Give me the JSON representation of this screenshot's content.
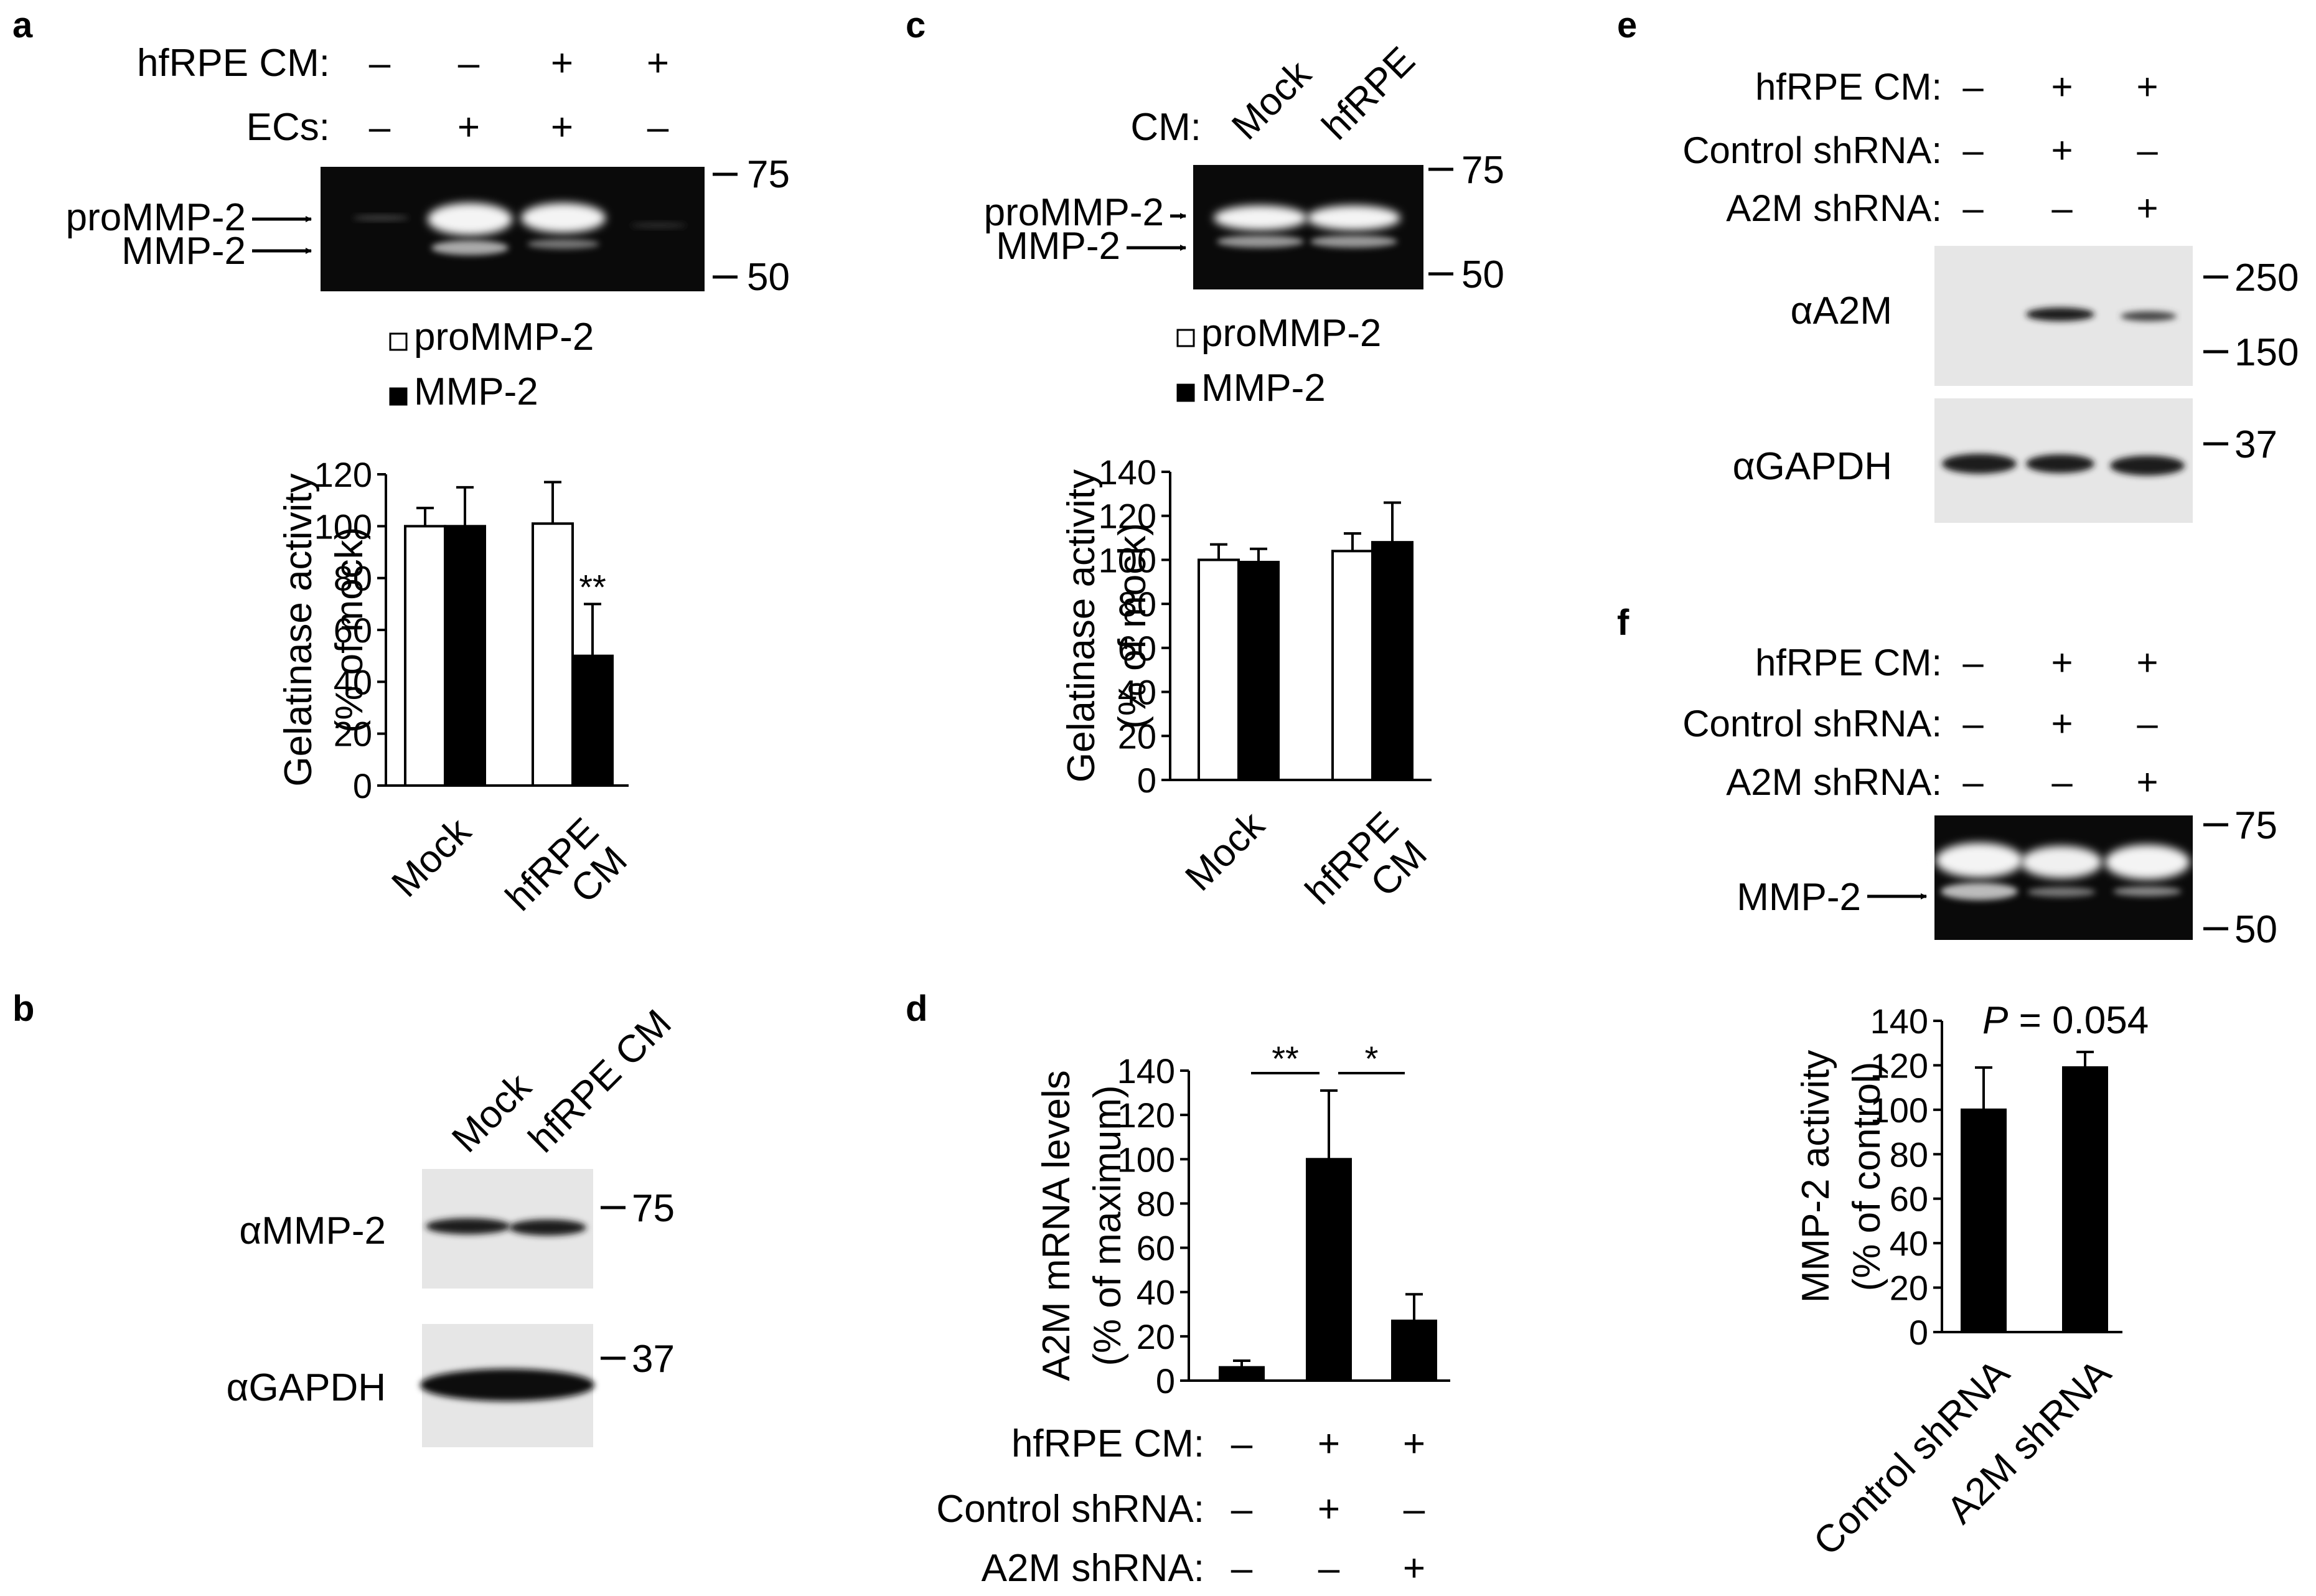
{
  "colors": {
    "bar_open": "#ffffff",
    "bar_solid": "#000000",
    "gel_background": "#0a0a0a",
    "band_bright": "#f4f4f4",
    "blot_background": "#e6e6e6",
    "blot_band": "#1a1a1a"
  },
  "symbols": {
    "plus": "+",
    "minus": "–"
  },
  "panels": {
    "a": {
      "letter": "a",
      "treatment_rows": [
        {
          "label": "hfRPE CM:",
          "values": [
            "–",
            "–",
            "+",
            "+"
          ]
        },
        {
          "label": "ECs:",
          "values": [
            "–",
            "+",
            "+",
            "–"
          ]
        }
      ],
      "band_labels": [
        "proMMP-2",
        "MMP-2"
      ],
      "markers": [
        "75",
        "50"
      ]
    },
    "b": {
      "letter": "b",
      "lanes": [
        "Mock",
        "hfRPE CM"
      ],
      "blots": [
        {
          "label": "αMMP-2",
          "marker": "75"
        },
        {
          "label": "αGAPDH",
          "marker": "37"
        }
      ]
    },
    "c": {
      "letter": "c",
      "cm_label": "CM:",
      "lanes": [
        "Mock",
        "hfRPE"
      ],
      "band_labels": [
        "proMMP-2",
        "MMP-2"
      ],
      "markers": [
        "75",
        "50"
      ]
    },
    "d": {
      "letter": "d",
      "treatment_rows": [
        {
          "label": "hfRPE CM:",
          "values": [
            "–",
            "+",
            "+"
          ]
        },
        {
          "label": "Control shRNA:",
          "values": [
            "–",
            "+",
            "–"
          ]
        },
        {
          "label": "A2M shRNA:",
          "values": [
            "–",
            "–",
            "+"
          ]
        }
      ]
    },
    "e": {
      "letter": "e",
      "treatment_rows": [
        {
          "label": "hfRPE CM:",
          "values": [
            "–",
            "+",
            "+"
          ]
        },
        {
          "label": "Control shRNA:",
          "values": [
            "–",
            "+",
            "–"
          ]
        },
        {
          "label": "A2M shRNA:",
          "values": [
            "–",
            "–",
            "+"
          ]
        }
      ],
      "blots": [
        {
          "label": "αA2M",
          "markers": [
            "250",
            "150"
          ]
        },
        {
          "label": "αGAPDH",
          "markers": [
            "37"
          ]
        }
      ]
    },
    "f": {
      "letter": "f",
      "treatment_rows": [
        {
          "label": "hfRPE CM:",
          "values": [
            "–",
            "+",
            "+"
          ]
        },
        {
          "label": "Control shRNA:",
          "values": [
            "–",
            "+",
            "–"
          ]
        },
        {
          "label": "A2M shRNA:",
          "values": [
            "–",
            "–",
            "+"
          ]
        }
      ],
      "band_label": "MMP-2",
      "markers": [
        "75",
        "50"
      ],
      "p_label": "P",
      "p_value": " = 0.054"
    }
  },
  "chart_data": [
    {
      "panel": "a",
      "type": "bar",
      "categories": [
        [
          "Mock"
        ],
        [
          "hfRPE",
          "CM"
        ]
      ],
      "series": [
        {
          "name": "proMMP-2",
          "values": [
            100,
            101
          ],
          "errors": [
            7,
            16
          ]
        },
        {
          "name": "MMP-2",
          "values": [
            100,
            50
          ],
          "errors": [
            15,
            20
          ]
        }
      ],
      "ylabel": [
        "Gelatinase activity",
        "(% of mock)"
      ],
      "ylim": [
        0,
        120
      ],
      "yticks": [
        0,
        20,
        40,
        60,
        80,
        100,
        120
      ],
      "annotations": [
        {
          "text": "**",
          "category": 1,
          "series": 1
        }
      ],
      "legend": "top"
    },
    {
      "panel": "c",
      "type": "bar",
      "categories": [
        [
          "Mock"
        ],
        [
          "hfRPE",
          "CM"
        ]
      ],
      "series": [
        {
          "name": "proMMP-2",
          "values": [
            100,
            104
          ],
          "errors": [
            7,
            8
          ]
        },
        {
          "name": "MMP-2",
          "values": [
            99,
            108
          ],
          "errors": [
            6,
            18
          ]
        }
      ],
      "ylabel": [
        "Gelatinase activity",
        "(% of mock)"
      ],
      "ylim": [
        0,
        140
      ],
      "yticks": [
        0,
        20,
        40,
        60,
        80,
        100,
        120,
        140
      ],
      "legend": "top"
    },
    {
      "panel": "d",
      "type": "bar",
      "categories": [
        "",
        "",
        ""
      ],
      "series": [
        {
          "values": [
            6,
            100,
            27
          ],
          "errors": [
            3,
            31,
            12
          ]
        }
      ],
      "ylabel": [
        "A2M mRNA levels",
        "(% of maximum)"
      ],
      "ylim": [
        0,
        140
      ],
      "yticks": [
        0,
        20,
        40,
        60,
        80,
        100,
        120,
        140
      ],
      "significance": [
        {
          "from": 0,
          "to": 1,
          "text": "**"
        },
        {
          "from": 1,
          "to": 2,
          "text": "*"
        }
      ]
    },
    {
      "panel": "f",
      "type": "bar",
      "categories": [
        "Control shRNA",
        "A2M shRNA"
      ],
      "series": [
        {
          "values": [
            100,
            119
          ],
          "errors": [
            19,
            7
          ]
        }
      ],
      "ylabel": [
        "MMP-2 activity",
        "(% of control)"
      ],
      "ylim": [
        0,
        140
      ],
      "yticks": [
        0,
        20,
        40,
        60,
        80,
        100,
        120,
        140
      ]
    }
  ]
}
